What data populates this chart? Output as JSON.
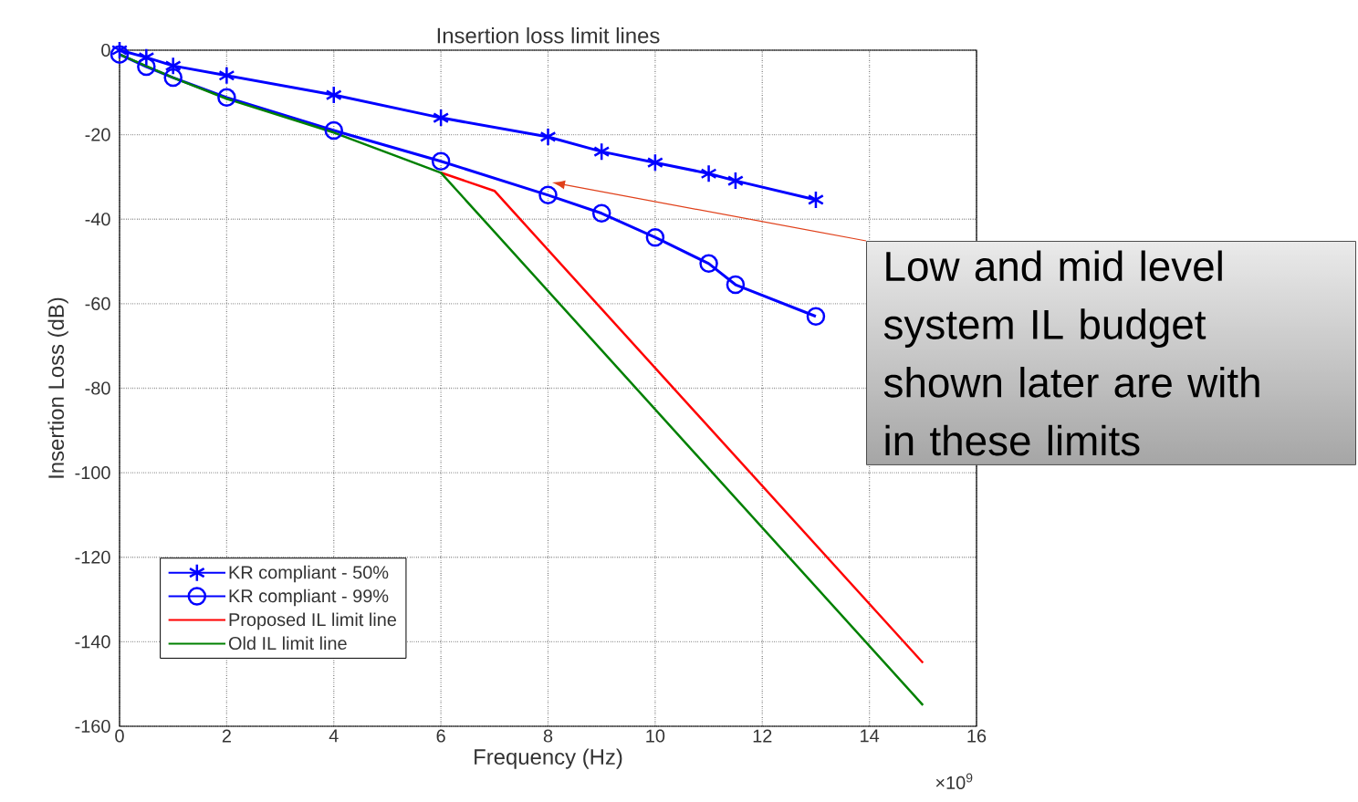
{
  "chart_data": {
    "type": "line",
    "title": "Insertion loss limit lines",
    "xlabel": "Frequency (Hz)",
    "ylabel": "Insertion Loss (dB)",
    "xlim": [
      0,
      16
    ],
    "xticks": [
      0,
      2,
      4,
      6,
      8,
      10,
      12,
      14,
      16
    ],
    "ylim": [
      -160,
      0
    ],
    "yticks": [
      -160,
      -140,
      -120,
      -100,
      -80,
      -60,
      -40,
      -20,
      0
    ],
    "grid": true,
    "legend": "bottom left",
    "line_style": "solid",
    "series": [
      {
        "name": "KR compliant - 50%",
        "color": "#0000ff",
        "marker": "cross",
        "x": [
          0,
          0.5,
          1,
          2,
          4,
          6,
          8,
          9,
          10,
          11,
          11.5,
          13
        ],
        "values": [
          0,
          -1.7,
          -3.7,
          -6,
          -10.6,
          -16,
          -20.5,
          -24,
          -26.6,
          -29.2,
          -30.9,
          -35.4
        ]
      },
      {
        "name": "KR compliant - 99%",
        "color": "#0000ff",
        "marker": "circle",
        "x": [
          0,
          0.5,
          1,
          2,
          4,
          6,
          8,
          9,
          10,
          11,
          11.5,
          13
        ],
        "values": [
          -1,
          -3.9,
          -6.5,
          -11.2,
          -19,
          -26.3,
          -34.3,
          -38.6,
          -44.3,
          -50.5,
          -55.5,
          -63
        ]
      },
      {
        "name": "Proposed IL limit line",
        "color": "#ff0000",
        "marker": "none",
        "x": [
          6,
          7,
          15
        ],
        "values": [
          -29,
          -33.3,
          -145
        ]
      },
      {
        "name": "Old IL limit line",
        "color": "#008000",
        "marker": "none",
        "x": [
          0,
          1,
          2,
          4,
          6,
          15
        ],
        "values": [
          -1,
          -6.5,
          -11.5,
          -19.5,
          -29,
          -155
        ]
      }
    ],
    "annotations": [
      "Low and mid level system IL budget shown later are with in these limits",
      "×10$^{9}$"
    ]
  }
}
